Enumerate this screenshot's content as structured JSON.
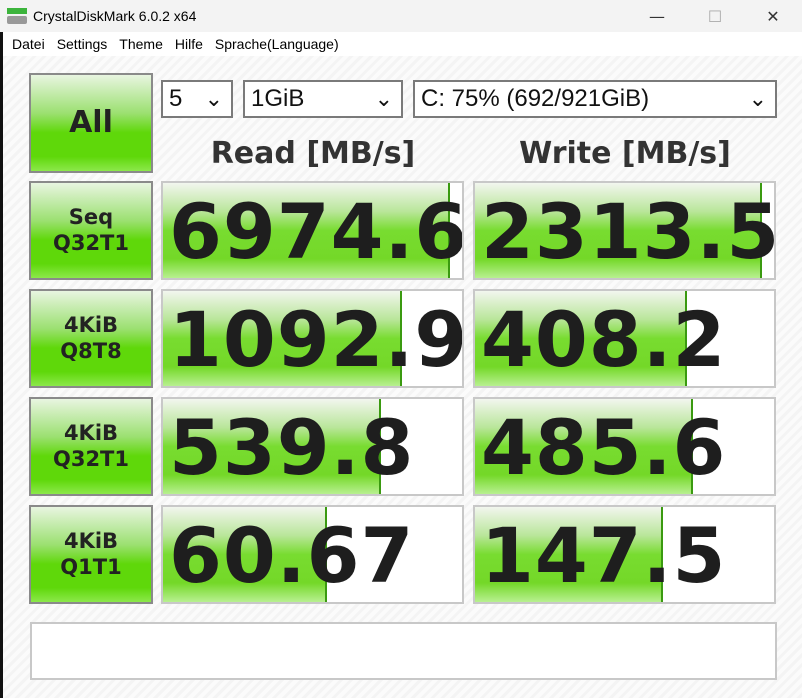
{
  "window": {
    "title": "CrystalDiskMark 6.0.2 x64",
    "minimize": "—",
    "maximize": "☐",
    "close": "✕"
  },
  "menu": [
    "Datei",
    "Settings",
    "Theme",
    "Hilfe",
    "Sprache(Language)"
  ],
  "controls": {
    "all_label": "All",
    "count": "5",
    "size": "1GiB",
    "drive": "C: 75% (692/921GiB)"
  },
  "headers": {
    "read": "Read [MB/s]",
    "write": "Write [MB/s]"
  },
  "tests": [
    {
      "line1": "Seq",
      "line2": "Q32T1",
      "read": "6974.6",
      "write": "2313.5",
      "read_fill": 0.96,
      "write_fill": 0.96
    },
    {
      "line1": "4KiB",
      "line2": "Q8T8",
      "read": "1092.9",
      "write": "408.2",
      "read_fill": 0.8,
      "write_fill": 0.71
    },
    {
      "line1": "4KiB",
      "line2": "Q32T1",
      "read": "539.8",
      "write": "485.6",
      "read_fill": 0.73,
      "write_fill": 0.73
    },
    {
      "line1": "4KiB",
      "line2": "Q1T1",
      "read": "60.67",
      "write": "147.5",
      "read_fill": 0.55,
      "write_fill": 0.63
    }
  ],
  "status": "",
  "colors": {
    "accent": "#5fd80a"
  }
}
